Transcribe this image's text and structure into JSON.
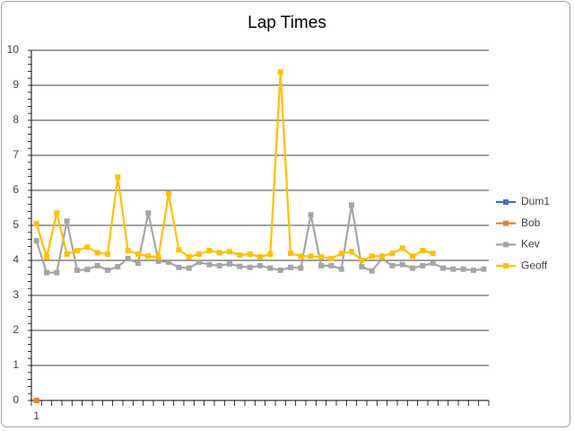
{
  "chart_data": {
    "type": "line",
    "title": "Lap Times",
    "categories": [
      "1",
      null,
      null,
      null,
      null,
      null,
      null,
      null,
      null,
      null,
      null,
      null,
      null,
      null,
      null,
      null,
      null,
      null,
      null,
      null,
      null,
      null,
      null,
      null,
      null,
      null,
      null,
      null,
      null,
      null,
      null,
      null,
      null,
      null,
      null,
      null,
      null,
      null,
      null,
      null,
      null,
      null,
      null,
      null,
      null
    ],
    "ylim": [
      0,
      10
    ],
    "yticks": [
      0,
      1,
      2,
      3,
      4,
      5,
      6,
      7,
      8,
      9,
      10
    ],
    "grid": true,
    "legend": "right",
    "series": [
      {
        "name": "Dum1",
        "color": "#4472c4",
        "values": [
          0,
          null,
          null,
          null,
          null,
          null,
          null,
          null,
          null,
          null,
          null,
          null,
          null,
          null,
          null,
          null,
          null,
          null,
          null,
          null,
          null,
          null,
          null,
          null,
          null,
          null,
          null,
          null,
          null,
          null,
          null,
          null,
          null,
          null,
          null,
          null,
          null,
          null,
          null,
          null,
          null,
          null,
          null,
          null,
          null
        ]
      },
      {
        "name": "Bob",
        "color": "#ed7d31",
        "values": [
          0,
          null,
          null,
          null,
          null,
          null,
          null,
          null,
          null,
          null,
          null,
          null,
          null,
          null,
          null,
          null,
          null,
          null,
          null,
          null,
          null,
          null,
          null,
          null,
          null,
          null,
          null,
          null,
          null,
          null,
          null,
          null,
          null,
          null,
          null,
          null,
          null,
          null,
          null,
          null,
          null,
          null,
          null,
          null,
          null
        ]
      },
      {
        "name": "Kev",
        "color": "#a5a5a5",
        "values": [
          4.56,
          3.65,
          3.65,
          5.12,
          3.72,
          3.74,
          3.85,
          3.72,
          3.82,
          4.05,
          3.92,
          5.35,
          3.98,
          3.95,
          3.8,
          3.78,
          3.95,
          3.88,
          3.85,
          3.9,
          3.83,
          3.8,
          3.85,
          3.78,
          3.72,
          3.8,
          3.78,
          5.3,
          3.85,
          3.85,
          3.75,
          5.58,
          3.82,
          3.7,
          4.05,
          3.85,
          3.88,
          3.78,
          3.85,
          3.92,
          3.78,
          3.75,
          3.75,
          3.72,
          3.75
        ]
      },
      {
        "name": "Geoff",
        "color": "#ffc000",
        "values": [
          5.05,
          4.1,
          5.35,
          4.18,
          4.28,
          4.38,
          4.22,
          4.18,
          6.38,
          4.28,
          4.18,
          4.12,
          4.1,
          5.9,
          4.3,
          4.1,
          4.18,
          4.28,
          4.22,
          4.25,
          4.15,
          4.18,
          4.1,
          4.18,
          9.38,
          4.2,
          4.12,
          4.12,
          4.1,
          4.05,
          4.2,
          4.25,
          4.0,
          4.12,
          4.12,
          4.2,
          4.35,
          4.12,
          4.28,
          4.2,
          null,
          null,
          null,
          null,
          null
        ]
      }
    ]
  }
}
